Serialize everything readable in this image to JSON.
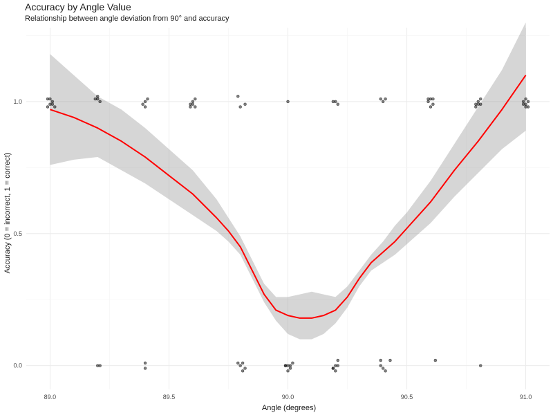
{
  "chart_data": {
    "type": "scatter",
    "title": "Accuracy by Angle Value",
    "subtitle": "Relationship between angle deviation from 90° and accuracy",
    "xlabel": "Angle (degrees)",
    "ylabel": "Accuracy (0 = incorrect, 1 = correct)",
    "xlim": [
      88.9,
      91.1
    ],
    "ylim": [
      -0.09,
      1.28
    ],
    "x_ticks": [
      89.0,
      89.5,
      90.0,
      90.5,
      91.0
    ],
    "x_tick_labels": [
      "89.0",
      "89.5",
      "90.0",
      "90.5",
      "91.0"
    ],
    "y_ticks": [
      0.0,
      0.5,
      1.0
    ],
    "y_tick_labels": [
      "0.0",
      "0.5",
      "1.0"
    ],
    "grid": true,
    "points": [
      {
        "x": 88.99,
        "y": 1.01
      },
      {
        "x": 89.0,
        "y": 0.99
      },
      {
        "x": 89.01,
        "y": 1.0
      },
      {
        "x": 89.02,
        "y": 0.98
      },
      {
        "x": 88.99,
        "y": 0.98
      },
      {
        "x": 89.0,
        "y": 1.01
      },
      {
        "x": 89.01,
        "y": 0.99
      },
      {
        "x": 89.19,
        "y": 1.01
      },
      {
        "x": 89.2,
        "y": 1.02
      },
      {
        "x": 89.21,
        "y": 1.0
      },
      {
        "x": 89.2,
        "y": 1.01
      },
      {
        "x": 89.39,
        "y": 0.99
      },
      {
        "x": 89.4,
        "y": 1.0
      },
      {
        "x": 89.41,
        "y": 1.01
      },
      {
        "x": 89.4,
        "y": 0.98
      },
      {
        "x": 89.59,
        "y": 0.98
      },
      {
        "x": 89.6,
        "y": 0.99
      },
      {
        "x": 89.61,
        "y": 1.01
      },
      {
        "x": 89.6,
        "y": 1.0
      },
      {
        "x": 89.61,
        "y": 0.98
      },
      {
        "x": 89.59,
        "y": 0.99
      },
      {
        "x": 89.79,
        "y": 1.02
      },
      {
        "x": 89.8,
        "y": 0.98
      },
      {
        "x": 89.82,
        "y": 0.99
      },
      {
        "x": 90.0,
        "y": 1.0
      },
      {
        "x": 90.19,
        "y": 1.0
      },
      {
        "x": 90.21,
        "y": 0.99
      },
      {
        "x": 90.2,
        "y": 1.0
      },
      {
        "x": 90.39,
        "y": 1.01
      },
      {
        "x": 90.4,
        "y": 1.0
      },
      {
        "x": 90.41,
        "y": 1.01
      },
      {
        "x": 90.59,
        "y": 1.0
      },
      {
        "x": 90.6,
        "y": 1.01
      },
      {
        "x": 90.61,
        "y": 0.99
      },
      {
        "x": 90.6,
        "y": 0.98
      },
      {
        "x": 90.59,
        "y": 1.01
      },
      {
        "x": 90.61,
        "y": 1.01
      },
      {
        "x": 90.79,
        "y": 0.98
      },
      {
        "x": 90.8,
        "y": 0.99
      },
      {
        "x": 90.81,
        "y": 1.01
      },
      {
        "x": 90.8,
        "y": 1.0
      },
      {
        "x": 90.81,
        "y": 0.99
      },
      {
        "x": 90.79,
        "y": 0.99
      },
      {
        "x": 90.99,
        "y": 0.99
      },
      {
        "x": 91.0,
        "y": 1.01
      },
      {
        "x": 91.0,
        "y": 0.98
      },
      {
        "x": 91.01,
        "y": 1.0
      },
      {
        "x": 91.0,
        "y": 0.99
      },
      {
        "x": 91.01,
        "y": 0.98
      },
      {
        "x": 90.99,
        "y": 1.0
      },
      {
        "x": 89.2,
        "y": 0.0
      },
      {
        "x": 89.21,
        "y": 0.0
      },
      {
        "x": 89.4,
        "y": 0.01
      },
      {
        "x": 89.4,
        "y": -0.01
      },
      {
        "x": 89.79,
        "y": 0.01
      },
      {
        "x": 89.8,
        "y": 0.0
      },
      {
        "x": 89.81,
        "y": 0.01
      },
      {
        "x": 89.82,
        "y": -0.01
      },
      {
        "x": 89.81,
        "y": -0.02
      },
      {
        "x": 89.99,
        "y": 0.0
      },
      {
        "x": 90.0,
        "y": -0.02
      },
      {
        "x": 90.01,
        "y": 0.0
      },
      {
        "x": 90.02,
        "y": 0.01
      },
      {
        "x": 90.0,
        "y": 0.0
      },
      {
        "x": 90.01,
        "y": -0.01
      },
      {
        "x": 89.99,
        "y": 0.0
      },
      {
        "x": 90.19,
        "y": -0.01
      },
      {
        "x": 90.2,
        "y": -0.02
      },
      {
        "x": 90.21,
        "y": 0.02
      },
      {
        "x": 90.19,
        "y": -0.01
      },
      {
        "x": 90.2,
        "y": 0.0
      },
      {
        "x": 90.21,
        "y": 0.0
      },
      {
        "x": 90.39,
        "y": 0.02
      },
      {
        "x": 90.4,
        "y": -0.01
      },
      {
        "x": 90.41,
        "y": -0.02
      },
      {
        "x": 90.43,
        "y": 0.02
      },
      {
        "x": 90.39,
        "y": 0.0
      },
      {
        "x": 90.62,
        "y": 0.02
      },
      {
        "x": 90.81,
        "y": 0.0
      }
    ],
    "smooth_line": {
      "color": "#ff0000",
      "x": [
        89.0,
        89.1,
        89.2,
        89.3,
        89.4,
        89.5,
        89.6,
        89.7,
        89.75,
        89.8,
        89.85,
        89.9,
        89.95,
        90.0,
        90.05,
        90.1,
        90.15,
        90.2,
        90.25,
        90.3,
        90.35,
        90.4,
        90.45,
        90.5,
        90.6,
        90.7,
        90.8,
        90.9,
        91.0
      ],
      "y": [
        0.97,
        0.94,
        0.9,
        0.85,
        0.79,
        0.72,
        0.65,
        0.56,
        0.51,
        0.45,
        0.36,
        0.27,
        0.21,
        0.19,
        0.18,
        0.18,
        0.19,
        0.21,
        0.26,
        0.33,
        0.39,
        0.43,
        0.47,
        0.52,
        0.62,
        0.74,
        0.85,
        0.97,
        1.1
      ]
    },
    "confidence_band": {
      "color": "#999999",
      "lower": [
        0.76,
        0.78,
        0.79,
        0.74,
        0.69,
        0.63,
        0.57,
        0.51,
        0.47,
        0.42,
        0.33,
        0.24,
        0.17,
        0.12,
        0.1,
        0.1,
        0.12,
        0.16,
        0.22,
        0.3,
        0.36,
        0.39,
        0.42,
        0.46,
        0.54,
        0.64,
        0.73,
        0.82,
        0.89
      ],
      "upper": [
        1.18,
        1.1,
        1.02,
        0.97,
        0.9,
        0.82,
        0.74,
        0.63,
        0.56,
        0.49,
        0.4,
        0.31,
        0.26,
        0.26,
        0.27,
        0.28,
        0.27,
        0.26,
        0.3,
        0.36,
        0.42,
        0.47,
        0.53,
        0.58,
        0.7,
        0.84,
        0.98,
        1.12,
        1.3
      ]
    }
  }
}
